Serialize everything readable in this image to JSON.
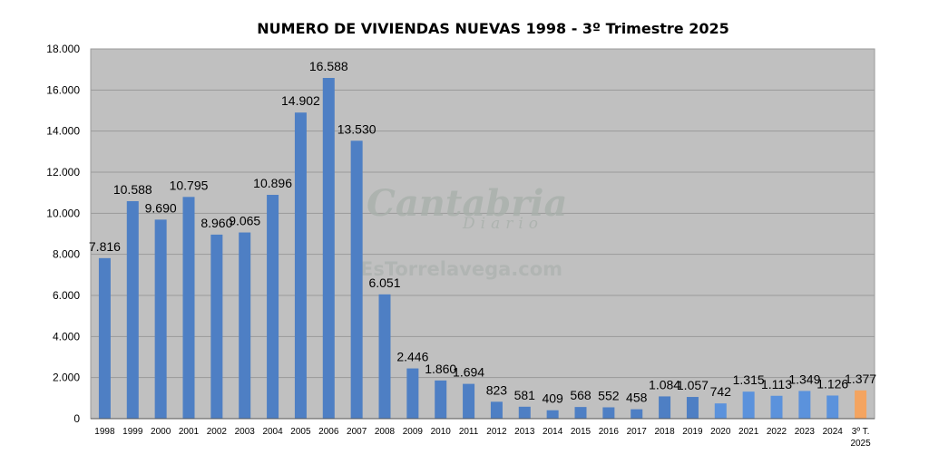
{
  "chart_data": {
    "type": "bar",
    "title": "NUMERO DE VIVIENDAS NUEVAS 1998 - 3º Trimestre 2025",
    "xlabel": "",
    "ylabel": "",
    "ylim": [
      0,
      18000
    ],
    "yticks": [
      "0",
      "2.000",
      "4.000",
      "6.000",
      "8.000",
      "10.000",
      "12.000",
      "14.000",
      "16.000",
      "18.000"
    ],
    "ytick_values": [
      0,
      2000,
      4000,
      6000,
      8000,
      10000,
      12000,
      14000,
      16000,
      18000
    ],
    "grid": true,
    "legend": "none",
    "categories": [
      "1998",
      "1999",
      "2000",
      "2001",
      "2002",
      "2003",
      "2004",
      "2005",
      "2006",
      "2007",
      "2008",
      "2009",
      "2010",
      "2011",
      "2012",
      "2013",
      "2014",
      "2015",
      "2016",
      "2017",
      "2018",
      "2019",
      "2020",
      "2021",
      "2022",
      "2023",
      "2024",
      "3º T. 2025"
    ],
    "values": [
      7816,
      10588,
      9690,
      10795,
      8960,
      9065,
      10896,
      14902,
      16588,
      13530,
      6051,
      2446,
      1860,
      1694,
      823,
      581,
      409,
      568,
      552,
      458,
      1084,
      1057,
      742,
      1315,
      1113,
      1349,
      1126,
      1377
    ],
    "data_labels": [
      "7.816",
      "10.588",
      "9.690",
      "10.795",
      "8.960",
      "9.065",
      "10.896",
      "14.902",
      "16.588",
      "13.530",
      "6.051",
      "2.446",
      "1.860",
      "1.694",
      "823",
      "581",
      "409",
      "568",
      "552",
      "458",
      "1.084",
      "1.057",
      "742",
      "1.315",
      "1.113",
      "1.349",
      "1.126",
      "1.377"
    ],
    "colors": {
      "bar": "#4e7fc4",
      "bar_light": "#5b92dc",
      "bar_highlight": "#f4a460",
      "plot_background": "#c0c0c0",
      "gridline": "#9a9a9a"
    }
  },
  "watermark": {
    "brand": "Cantabria",
    "sub": "Diario",
    "site": "EsTorrelavega.com"
  }
}
